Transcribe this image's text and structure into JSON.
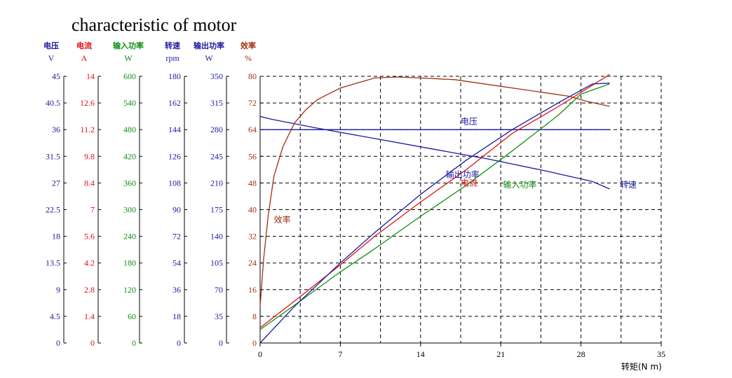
{
  "chart_data": {
    "type": "line",
    "title": "characteristic of motor",
    "xlabel": "转矩(N m)",
    "xlim": [
      0,
      35
    ],
    "x_ticks": [
      "0",
      "7",
      "14",
      "21",
      "28",
      "35"
    ],
    "grid": true,
    "axes": [
      {
        "id": "voltage",
        "name": "电压",
        "unit": "V",
        "color": "#1a1aa0",
        "range": [
          0,
          45
        ],
        "ticks": [
          "0",
          "4.5",
          "9",
          "13.5",
          "18",
          "22.5",
          "27",
          "31.5",
          "36",
          "40.5",
          "45"
        ]
      },
      {
        "id": "current",
        "name": "电流",
        "unit": "A",
        "color": "#e01010",
        "range": [
          0,
          14
        ],
        "ticks": [
          "0",
          "1.4",
          "2.8",
          "4.2",
          "5.6",
          "7",
          "8.4",
          "9.8",
          "11.2",
          "12.6",
          "14"
        ]
      },
      {
        "id": "input_power",
        "name": "输入功率",
        "unit": "W",
        "color": "#109010",
        "range": [
          0,
          600
        ],
        "ticks": [
          "0",
          "60",
          "120",
          "180",
          "240",
          "300",
          "360",
          "420",
          "480",
          "540",
          "600"
        ]
      },
      {
        "id": "speed",
        "name": "转速",
        "unit": "rpm",
        "color": "#1a1aa0",
        "range": [
          0,
          180
        ],
        "ticks": [
          "0",
          "18",
          "36",
          "54",
          "72",
          "90",
          "108",
          "126",
          "144",
          "162",
          "180"
        ]
      },
      {
        "id": "output_power",
        "name": "输出功率",
        "unit": "W",
        "color": "#1a1aa0",
        "range": [
          0,
          350
        ],
        "ticks": [
          "0",
          "35",
          "70",
          "105",
          "140",
          "175",
          "210",
          "245",
          "280",
          "315",
          "350"
        ]
      },
      {
        "id": "efficiency",
        "name": "效率",
        "unit": "%",
        "color": "#a03010",
        "range": [
          0,
          80
        ],
        "ticks": [
          "0",
          "8",
          "16",
          "24",
          "32",
          "40",
          "48",
          "56",
          "64",
          "72",
          "80"
        ]
      }
    ],
    "series": [
      {
        "name": "电压",
        "axis": "voltage",
        "color": "#1a1aa0",
        "points": [
          [
            0,
            36
          ],
          [
            30.5,
            36
          ]
        ]
      },
      {
        "name": "电流",
        "axis": "current",
        "color": "#e01010",
        "points": [
          [
            0,
            0.8
          ],
          [
            3,
            2.2
          ],
          [
            7,
            4.1
          ],
          [
            10,
            5.6
          ],
          [
            14,
            7.4
          ],
          [
            18,
            9.1
          ],
          [
            22,
            11
          ],
          [
            26,
            12.4
          ],
          [
            30.5,
            14.1
          ]
        ]
      },
      {
        "name": "输入功率",
        "axis": "input_power",
        "color": "#109010",
        "points": [
          [
            0,
            30
          ],
          [
            3,
            85
          ],
          [
            7,
            160
          ],
          [
            10,
            212
          ],
          [
            14,
            285
          ],
          [
            18,
            355
          ],
          [
            22,
            432
          ],
          [
            26,
            512
          ],
          [
            28,
            560
          ],
          [
            30.5,
            583
          ]
        ]
      },
      {
        "name": "转速",
        "axis": "speed",
        "color": "#1a1aa0",
        "points": [
          [
            0,
            153
          ],
          [
            1,
            151
          ],
          [
            5,
            145
          ],
          [
            10,
            138
          ],
          [
            15,
            131
          ],
          [
            20,
            124
          ],
          [
            25,
            116
          ],
          [
            29,
            109
          ],
          [
            30.5,
            104
          ]
        ]
      },
      {
        "name": "输出功率",
        "axis": "output_power",
        "color": "#1a1aa0",
        "points": [
          [
            0,
            0
          ],
          [
            3,
            48
          ],
          [
            7,
            105
          ],
          [
            10,
            145
          ],
          [
            14,
            195
          ],
          [
            18,
            240
          ],
          [
            22,
            280
          ],
          [
            26,
            315
          ],
          [
            29,
            340
          ],
          [
            30.5,
            341
          ]
        ]
      },
      {
        "name": "效率",
        "axis": "efficiency",
        "color": "#a03010",
        "points": [
          [
            0,
            11
          ],
          [
            0.3,
            25
          ],
          [
            0.7,
            38
          ],
          [
            1.2,
            50
          ],
          [
            2,
            59
          ],
          [
            3,
            66
          ],
          [
            4,
            70
          ],
          [
            5,
            73
          ],
          [
            7,
            76.5
          ],
          [
            10,
            79.5
          ],
          [
            12,
            79.8
          ],
          [
            14,
            79.5
          ],
          [
            17,
            79
          ],
          [
            21,
            77
          ],
          [
            25,
            75
          ],
          [
            27,
            74
          ],
          [
            28.5,
            72.5
          ],
          [
            30.5,
            71
          ]
        ]
      }
    ],
    "labels": [
      {
        "text": "电压",
        "x": 17.5,
        "axis": "efficiency",
        "y": 66.5,
        "color": "#1a1aa0"
      },
      {
        "text": "输出功率",
        "x": 16.2,
        "axis": "efficiency",
        "y": 50.5,
        "color": "#1a1aa0"
      },
      {
        "text": "电流",
        "x": 17.5,
        "axis": "efficiency",
        "y": 48,
        "color": "#e01010"
      },
      {
        "text": "输入功率",
        "x": 21.2,
        "axis": "efficiency",
        "y": 47.5,
        "color": "#109010"
      },
      {
        "text": "转速",
        "x": 31.4,
        "axis": "efficiency",
        "y": 47.5,
        "color": "#1a1aa0"
      },
      {
        "text": "效率",
        "x": 1.2,
        "axis": "efficiency",
        "y": 37,
        "color": "#a03010"
      }
    ]
  }
}
